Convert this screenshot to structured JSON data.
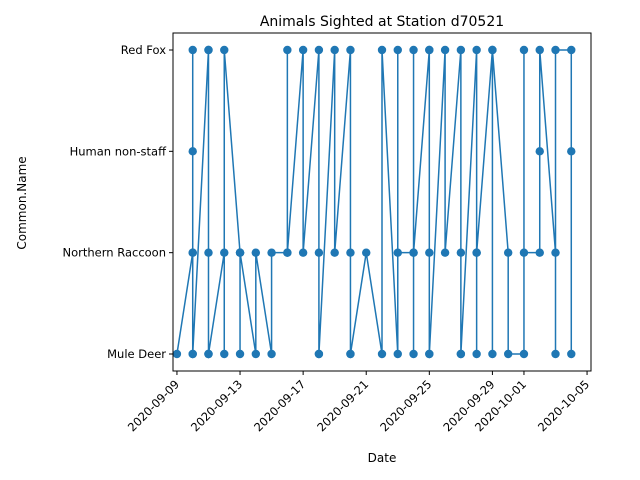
{
  "chart_data": {
    "type": "line",
    "title": "Animals Sighted at Station d70521",
    "xlabel": "Date",
    "ylabel": "Common.Name",
    "categories": [
      "Mule Deer",
      "Northern Raccoon",
      "Human non-staff",
      "Red Fox"
    ],
    "x_ticks": [
      "2020-09-09",
      "2020-09-13",
      "2020-09-17",
      "2020-09-21",
      "2020-09-25",
      "2020-09-29",
      "2020-10-01",
      "2020-10-05"
    ],
    "xlim": [
      "2020-09-08T18:00",
      "2020-10-05T06:00"
    ],
    "grid": false,
    "legend": "none",
    "color": "#1f77b4",
    "series": [
      {
        "x": [
          "2020-09-09",
          "2020-09-10",
          "2020-09-10",
          "2020-09-10",
          "2020-09-10",
          "2020-09-10",
          "2020-09-10",
          "2020-09-11",
          "2020-09-11",
          "2020-09-11",
          "2020-09-11",
          "2020-09-11",
          "2020-09-11",
          "2020-09-12",
          "2020-09-12",
          "2020-09-12",
          "2020-09-13",
          "2020-09-13",
          "2020-09-13",
          "2020-09-13",
          "2020-09-14",
          "2020-09-14",
          "2020-09-15",
          "2020-09-15",
          "2020-09-16",
          "2020-09-16",
          "2020-09-16",
          "2020-09-17",
          "2020-09-17",
          "2020-09-18",
          "2020-09-18",
          "2020-09-18",
          "2020-09-18",
          "2020-09-19",
          "2020-09-19",
          "2020-09-20",
          "2020-09-20",
          "2020-09-20",
          "2020-09-20",
          "2020-09-21",
          "2020-09-22",
          "2020-09-22",
          "2020-09-23",
          "2020-09-23",
          "2020-09-23",
          "2020-09-24",
          "2020-09-24",
          "2020-09-24",
          "2020-09-24",
          "2020-09-25",
          "2020-09-25",
          "2020-09-25",
          "2020-09-25",
          "2020-09-25",
          "2020-09-26",
          "2020-09-26",
          "2020-09-27",
          "2020-09-27",
          "2020-09-27",
          "2020-09-27",
          "2020-09-28",
          "2020-09-28",
          "2020-09-28",
          "2020-09-28",
          "2020-09-29",
          "2020-09-29",
          "2020-09-29",
          "2020-09-30",
          "2020-09-30",
          "2020-10-01",
          "2020-10-01",
          "2020-10-01",
          "2020-10-02",
          "2020-10-02",
          "2020-10-02",
          "2020-10-03",
          "2020-10-03",
          "2020-10-03",
          "2020-10-04",
          "2020-10-04",
          "2020-10-04"
        ],
        "y": [
          "Mule Deer",
          "Northern Raccoon",
          "Mule Deer",
          "Human non-staff",
          "Red Fox",
          "Northern Raccoon",
          "Mule Deer",
          "Red Fox",
          "Mule Deer",
          "Northern Raccoon",
          "Mule Deer",
          "Red Fox",
          "Mule Deer",
          "Northern Raccoon",
          "Mule Deer",
          "Red Fox",
          "Northern Raccoon",
          "Mule Deer",
          "Northern Raccoon",
          "Northern Raccoon",
          "Mule Deer",
          "Northern Raccoon",
          "Mule Deer",
          "Northern Raccoon",
          "Northern Raccoon",
          "Red Fox",
          "Northern Raccoon",
          "Red Fox",
          "Northern Raccoon",
          "Red Fox",
          "Mule Deer",
          "Northern Raccoon",
          "Mule Deer",
          "Red Fox",
          "Northern Raccoon",
          "Red Fox",
          "Mule Deer",
          "Northern Raccoon",
          "Mule Deer",
          "Northern Raccoon",
          "Mule Deer",
          "Red Fox",
          "Mule Deer",
          "Red Fox",
          "Northern Raccoon",
          "Northern Raccoon",
          "Red Fox",
          "Mule Deer",
          "Northern Raccoon",
          "Red Fox",
          "Northern Raccoon",
          "Mule Deer",
          "Red Fox",
          "Mule Deer",
          "Red Fox",
          "Northern Raccoon",
          "Red Fox",
          "Mule Deer",
          "Northern Raccoon",
          "Mule Deer",
          "Red Fox",
          "Northern Raccoon",
          "Mule Deer",
          "Northern Raccoon",
          "Red Fox",
          "Mule Deer",
          "Red Fox",
          "Northern Raccoon",
          "Mule Deer",
          "Mule Deer",
          "Red Fox",
          "Northern Raccoon",
          "Northern Raccoon",
          "Human non-staff",
          "Red Fox",
          "Northern Raccoon",
          "Mule Deer",
          "Red Fox",
          "Red Fox",
          "Human non-staff",
          "Mule Deer"
        ]
      }
    ]
  }
}
